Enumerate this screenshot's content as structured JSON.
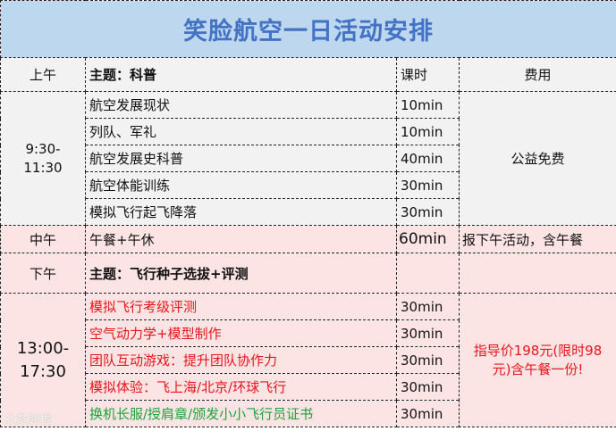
{
  "title": "笑脸航空一日活动安排",
  "header": {
    "period": "上午",
    "theme": "主题：科普",
    "duration_label": "课时",
    "fee_label": "费用"
  },
  "morning": {
    "time": "9:30-11:30",
    "fee": "公益免费",
    "items": [
      {
        "name": "航空发展现状",
        "duration": "10min"
      },
      {
        "name": "列队、军礼",
        "duration": "10min"
      },
      {
        "name": "航空发展史科普",
        "duration": "40min"
      },
      {
        "name": "航空体能训练",
        "duration": "30min"
      },
      {
        "name": "模拟飞行起飞降落",
        "duration": "30min"
      }
    ]
  },
  "noon": {
    "period": "中午",
    "name": "午餐+午休",
    "duration": "60min",
    "fee": "报下午活动，含午餐"
  },
  "afternoon": {
    "period": "下午",
    "theme": "主题：飞行种子选拔+评测",
    "time": "13:00-17:30",
    "fee": "指导价198元(限时98元)含午餐一份!",
    "items": [
      {
        "name": "模拟飞行考级评测",
        "duration": "30min"
      },
      {
        "name": "空气动力学+模型制作",
        "duration": "30min"
      },
      {
        "name": "团队互动游戏：提升团队协作力",
        "duration": "30min"
      },
      {
        "name": "模拟体验：飞上海/北京/环球飞行",
        "duration": "30min"
      },
      {
        "name": "换机长服/授肩章/颁发小小飞行员证书",
        "duration": "30min"
      }
    ]
  },
  "colors": {
    "title_bg": "#bdd7ee",
    "title_text": "#4472c4",
    "red_text": "#e8141a",
    "green_text": "#1aa33c",
    "pink_bg": "#fde4e4"
  },
  "watermark": "大数跨境"
}
